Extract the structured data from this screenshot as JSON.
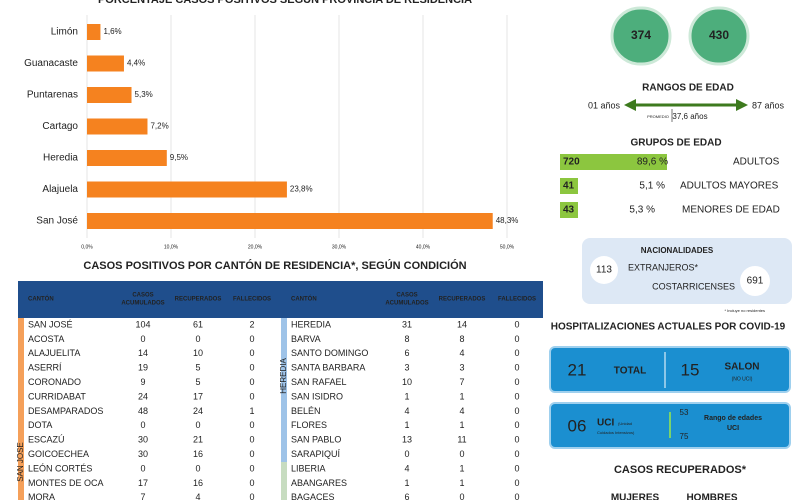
{
  "chart_data": {
    "type": "bar",
    "orientation": "horizontal",
    "title": "PORCENTAJE CASOS POSITIVOS SEGÚN PROVINCIA DE RESIDENCIA",
    "categories": [
      "Limón",
      "Guanacaste",
      "Puntarenas",
      "Cartago",
      "Heredia",
      "Alajuela",
      "San José"
    ],
    "values": [
      1.6,
      4.4,
      5.3,
      7.2,
      9.5,
      23.8,
      48.3
    ],
    "value_labels": [
      "1,6%",
      "4,4%",
      "5,3%",
      "7,2%",
      "9,5%",
      "23,8%",
      "48,3%"
    ],
    "color": "#f5821f",
    "xlim": [
      0,
      50
    ],
    "xticks": [
      {
        "value": 0,
        "label": "0,0%"
      },
      {
        "value": 10,
        "label": "10,0%"
      },
      {
        "value": 20,
        "label": "20,0%"
      },
      {
        "value": 30,
        "label": "30,0%"
      },
      {
        "value": 40,
        "label": "40,0%"
      },
      {
        "value": 50,
        "label": "50,0%"
      }
    ],
    "grid": true
  },
  "sex": [
    "374",
    "430"
  ],
  "age_range": {
    "title": "RANGOS DE EDAD",
    "min": "01 años",
    "max": "87 años",
    "mean_label": "PROMEDIO",
    "mean": "37,6 años"
  },
  "age_groups": {
    "title": "GRUPOS DE EDAD",
    "rows": [
      [
        "720",
        "89,6 %",
        "ADULTOS"
      ],
      [
        "41",
        "5,1 %",
        "ADULTOS MAYORES"
      ],
      [
        "43",
        "5,3 %",
        "MENORES DE EDAD"
      ]
    ]
  },
  "nationality": {
    "title": "NACIONALIDADES",
    "foreign": "113",
    "foreign_label": "EXTRANJEROS*",
    "local_label": "COSTARRICENSES",
    "local": "691",
    "note": "* Incluye no residentes"
  },
  "hospital": {
    "title": "HOSPITALIZACIONES ACTUALES POR COVID-19",
    "total": "21",
    "total_label": "TOTAL",
    "ward": "15",
    "ward_label": "SALON",
    "ward_note": "(NO UCI)",
    "icu": "06",
    "icu_label": "UCI",
    "icu_note": [
      "(Unidad",
      "Cuidados Intensivos)"
    ],
    "icu_min": "53",
    "icu_max": "75",
    "icu_range": [
      "Rango de edades",
      "UCI"
    ]
  },
  "recovered": {
    "title": "CASOS RECUPERADOS*",
    "women": "MUJERES",
    "men": "HOMBRES"
  },
  "table": {
    "title": "CASOS POSITIVOS POR CANTÓN DE RESIDENCIA*, SEGÚN CONDICIÓN",
    "header": [
      [
        "CANTÓN"
      ],
      [
        "CASOS",
        "ACUMULADOS"
      ],
      [
        "RECUPERADOS"
      ],
      [
        "FALLECIDOS"
      ],
      [
        "CANTÓN"
      ],
      [
        "CASOS",
        "ACUMULADOS"
      ],
      [
        "RECUPERADOS"
      ],
      [
        "FALLECIDOS"
      ]
    ],
    "groups": [
      "SAN JOSE",
      "HEREDIA"
    ],
    "left": [
      [
        "SAN JOSÉ",
        "104",
        "61",
        "2"
      ],
      [
        "ACOSTA",
        "0",
        "0",
        "0"
      ],
      [
        "ALAJUELITA",
        "14",
        "10",
        "0"
      ],
      [
        "ASERRÍ",
        "19",
        "5",
        "0"
      ],
      [
        "CORONADO",
        "9",
        "5",
        "0"
      ],
      [
        "CURRIDABAT",
        "24",
        "17",
        "0"
      ],
      [
        "DESAMPARADOS",
        "48",
        "24",
        "1"
      ],
      [
        "DOTA",
        "0",
        "0",
        "0"
      ],
      [
        "ESCAZÚ",
        "30",
        "21",
        "0"
      ],
      [
        "GOICOECHEA",
        "30",
        "16",
        "0"
      ],
      [
        "LEÓN CORTÉS",
        "0",
        "0",
        "0"
      ],
      [
        "MONTES DE OCA",
        "17",
        "16",
        "0"
      ],
      [
        "MORA",
        "7",
        "4",
        "0"
      ]
    ],
    "right": [
      [
        "HEREDIA",
        "31",
        "14",
        "0"
      ],
      [
        "BARVA",
        "8",
        "8",
        "0"
      ],
      [
        "SANTO DOMINGO",
        "6",
        "4",
        "0"
      ],
      [
        "SANTA BARBARA",
        "3",
        "3",
        "0"
      ],
      [
        "SAN RAFAEL",
        "10",
        "7",
        "0"
      ],
      [
        "SAN ISIDRO",
        "1",
        "1",
        "0"
      ],
      [
        "BELÉN",
        "4",
        "4",
        "0"
      ],
      [
        "FLORES",
        "1",
        "1",
        "0"
      ],
      [
        "SAN PABLO",
        "13",
        "11",
        "0"
      ],
      [
        "SARAPIQUÍ",
        "0",
        "0",
        "0"
      ],
      [
        "LIBERIA",
        "4",
        "1",
        "0"
      ],
      [
        "ABANGARES",
        "1",
        "1",
        "0"
      ],
      [
        "BAGACES",
        "6",
        "0",
        "0"
      ]
    ]
  }
}
